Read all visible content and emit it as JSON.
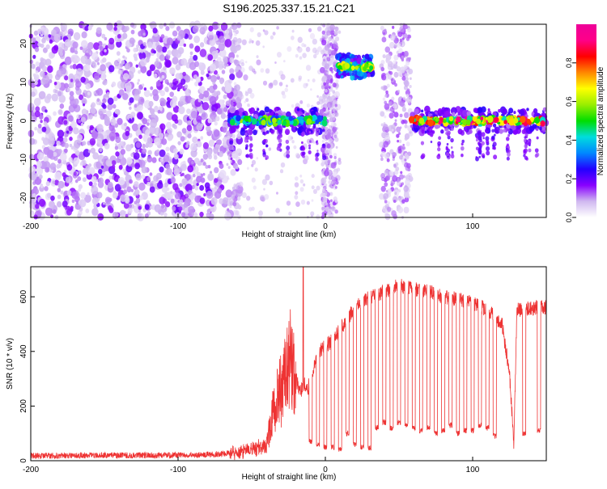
{
  "title": "S196.2025.337.15.21.C21",
  "chart_data": [
    {
      "type": "heatmap",
      "xlabel": "Height of straight line (km)",
      "ylabel": "Frequency (Hz)",
      "xlim": [
        -200,
        150
      ],
      "ylim": [
        -25,
        25
      ],
      "x_ticks": [
        -200,
        -100,
        0,
        100
      ],
      "y_ticks": [
        -20,
        -10,
        0,
        10,
        20
      ],
      "colorbar": {
        "label": "Normalized spectral amplitude",
        "range": [
          0.0,
          1.0
        ],
        "ticks": [
          0.0,
          0.2,
          0.4,
          0.6,
          0.8
        ],
        "tick_labels": [
          "0.0",
          "0.2",
          "0.4",
          "0.6",
          "0.8"
        ],
        "colors": [
          "#ffffff",
          "#d0b8f0",
          "#8800ff",
          "#2200ff",
          "#0088ff",
          "#00dddd",
          "#00dd00",
          "#99ee00",
          "#ffff00",
          "#ff8800",
          "#ff0000",
          "#ff0088",
          "#ee0099"
        ]
      },
      "features": [
        {
          "name": "noise field",
          "x_range": [
            -200,
            -70
          ],
          "freq_range": [
            -25,
            25
          ],
          "amplitude": 0.15
        },
        {
          "name": "narrowband line",
          "x_range": [
            -65,
            0
          ],
          "freq": 0,
          "amplitude": 0.55
        },
        {
          "name": "column",
          "x_range": [
            -2,
            8
          ],
          "freq_range": [
            -25,
            25
          ],
          "amplitude": 0.12
        },
        {
          "name": "high-frequency band",
          "x_range": [
            8,
            32
          ],
          "freq": 14,
          "amplitude": 0.6
        },
        {
          "name": "column",
          "x_range": [
            38,
            58
          ],
          "freq_range": [
            -25,
            25
          ],
          "amplitude": 0.12
        },
        {
          "name": "narrowband line",
          "x_range": [
            58,
            150
          ],
          "freq": 0,
          "amplitude": 0.85
        }
      ]
    },
    {
      "type": "line",
      "xlabel": "Height of straight line (km)",
      "ylabel": "SNR (10 * v/v)",
      "xlim": [
        -200,
        150
      ],
      "ylim": [
        0,
        710
      ],
      "x_ticks": [
        -200,
        -100,
        0,
        100
      ],
      "y_ticks": [
        0,
        200,
        400,
        600
      ],
      "color": "#ee3333",
      "series": [
        {
          "name": "SNR",
          "x": [
            -200,
            -150,
            -100,
            -80,
            -70,
            -60,
            -50,
            -40,
            -35,
            -30,
            -28,
            -26,
            -24,
            -22,
            -20,
            -18,
            -16,
            -14,
            -15,
            -12,
            -10,
            -5,
            0,
            5,
            10,
            20,
            30,
            40,
            50,
            60,
            70,
            80,
            90,
            100,
            110,
            120,
            125,
            128,
            130,
            140,
            150
          ],
          "values": [
            18,
            20,
            20,
            22,
            25,
            30,
            40,
            50,
            200,
            260,
            300,
            350,
            380,
            330,
            300,
            270,
            260,
            280,
            710,
            260,
            300,
            400,
            420,
            440,
            480,
            560,
            600,
            620,
            640,
            630,
            620,
            600,
            590,
            580,
            550,
            500,
            320,
            60,
            550,
            560,
            560
          ]
        },
        {
          "name": "SNR dips",
          "x": [
            -10,
            -5,
            0,
            5,
            10,
            15,
            20,
            25,
            30,
            35,
            40,
            45,
            50,
            55,
            60,
            65,
            70,
            75,
            80,
            85,
            90,
            95,
            100,
            105,
            110,
            115,
            135,
            145
          ],
          "values": [
            60,
            50,
            40,
            40,
            30,
            90,
            50,
            40,
            35,
            110,
            130,
            110,
            130,
            120,
            110,
            100,
            110,
            90,
            100,
            120,
            90,
            100,
            100,
            120,
            110,
            80,
            90,
            100
          ]
        }
      ]
    }
  ]
}
